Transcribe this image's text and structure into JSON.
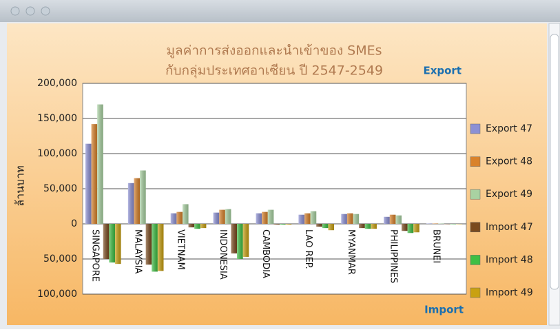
{
  "chart_data": {
    "type": "bar",
    "title": [
      "มูลค่าการส่งออกและนำเข้าของ SMEs",
      "กับกลุ่มประเทศอาเซียน ปี 2547-2549"
    ],
    "y_label": "ล้านบาท",
    "annotations": [
      "Export",
      "Import"
    ],
    "categories": [
      "SINGAPORE",
      "MALAYSIA",
      "VIETNAM",
      "INDONESIA",
      "CAMBODIA",
      "LAO REP.",
      "MYANMAR",
      "PHILIPPINES",
      "BRUNEI"
    ],
    "series": [
      {
        "name": "Export 47",
        "color": "#8c90d4",
        "values": [
          114000,
          58000,
          15000,
          16000,
          15000,
          13000,
          14000,
          10000,
          500
        ]
      },
      {
        "name": "Export 48",
        "color": "#d9822b",
        "values": [
          142000,
          65000,
          17000,
          20000,
          17000,
          15000,
          15000,
          13000,
          500
        ]
      },
      {
        "name": "Export 49",
        "color": "#a9d2a2",
        "values": [
          170000,
          76000,
          28000,
          21000,
          20000,
          18000,
          14000,
          12000,
          500
        ]
      },
      {
        "name": "Import 47",
        "color": "#7a4a1e",
        "values": [
          -50000,
          -58000,
          -5000,
          -42000,
          -1000,
          -4000,
          -6000,
          -10000,
          -500
        ]
      },
      {
        "name": "Import 48",
        "color": "#3fbf44",
        "values": [
          -55000,
          -68000,
          -7000,
          -50000,
          -1000,
          -6000,
          -7000,
          -13000,
          -500
        ]
      },
      {
        "name": "Import 49",
        "color": "#c9a112",
        "values": [
          -57000,
          -67000,
          -6000,
          -47000,
          -1000,
          -9000,
          -7000,
          -12000,
          -500
        ]
      }
    ],
    "ylim": [
      -100000,
      200000
    ],
    "yticks": [
      {
        "value": -100000,
        "label": "100,000"
      },
      {
        "value": -50000,
        "label": "50,000"
      },
      0,
      {
        "value": 50000,
        "label": "50,000"
      },
      {
        "value": 100000,
        "label": "100,000"
      },
      {
        "value": 150000,
        "label": "150,000"
      },
      {
        "value": 200000,
        "label": "200,000"
      }
    ],
    "grid": true,
    "legend": "right"
  }
}
